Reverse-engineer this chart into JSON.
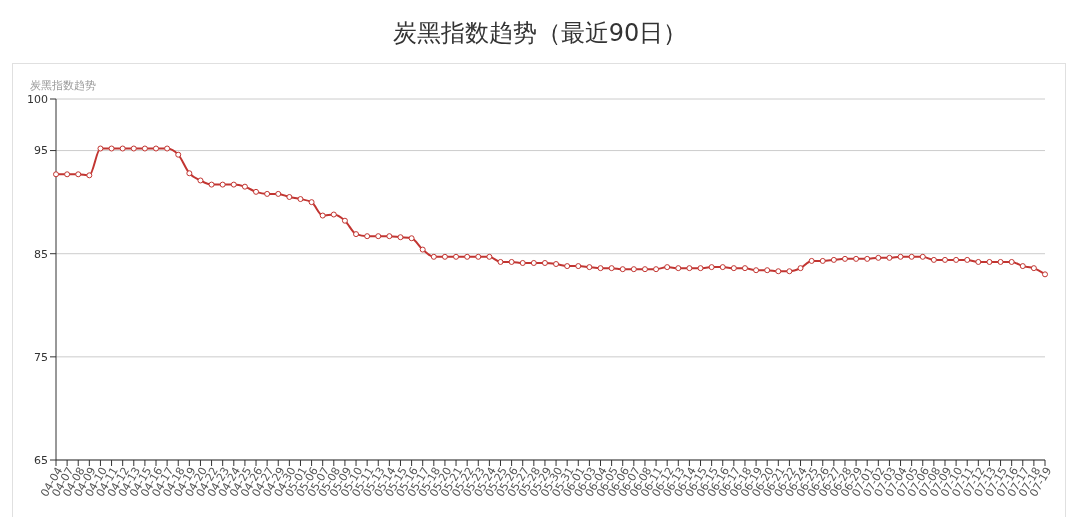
{
  "chart_data": {
    "type": "line",
    "title": "炭黑指数趋势（最近90日）",
    "ylabel": "炭黑指数趋势",
    "categories": [
      "04-04",
      "04-07",
      "04-08",
      "04-09",
      "04-10",
      "04-11",
      "04-12",
      "04-13",
      "04-15",
      "04-16",
      "04-17",
      "04-18",
      "04-19",
      "04-20",
      "04-22",
      "04-23",
      "04-24",
      "04-25",
      "04-26",
      "04-27",
      "04-29",
      "04-30",
      "05-01",
      "05-06",
      "05-07",
      "05-08",
      "05-09",
      "05-10",
      "05-11",
      "05-13",
      "05-14",
      "05-15",
      "05-16",
      "05-17",
      "05-18",
      "05-20",
      "05-21",
      "05-22",
      "05-23",
      "05-24",
      "05-25",
      "05-26",
      "05-27",
      "05-28",
      "05-29",
      "05-30",
      "05-31",
      "06-01",
      "06-03",
      "06-04",
      "06-05",
      "06-06",
      "06-07",
      "06-08",
      "06-11",
      "06-12",
      "06-13",
      "06-14",
      "06-15",
      "06-15",
      "06-16",
      "06-17",
      "06-18",
      "06-19",
      "06-20",
      "06-21",
      "06-22",
      "06-24",
      "06-25",
      "06-26",
      "06-27",
      "06-28",
      "06-29",
      "07-01",
      "07-02",
      "07-03",
      "07-04",
      "07-05",
      "07-06",
      "07-08",
      "07-09",
      "07-10",
      "07-11",
      "07-12",
      "07-13",
      "07-15",
      "07-16",
      "07-17",
      "07-18",
      "07-19"
    ],
    "series": [
      {
        "color": "#c23531",
        "values": [
          92.7,
          92.7,
          92.7,
          92.6,
          95.2,
          95.2,
          95.2,
          95.2,
          95.2,
          95.2,
          95.2,
          94.6,
          92.8,
          92.1,
          91.7,
          91.7,
          91.7,
          91.5,
          91.0,
          90.8,
          90.8,
          90.5,
          90.3,
          90.0,
          88.7,
          88.8,
          88.2,
          86.9,
          86.7,
          86.7,
          86.7,
          86.6,
          86.5,
          85.4,
          84.7,
          84.7,
          84.7,
          84.7,
          84.7,
          84.7,
          84.2,
          84.2,
          84.1,
          84.1,
          84.1,
          84.0,
          83.8,
          83.8,
          83.7,
          83.6,
          83.6,
          83.5,
          83.5,
          83.5,
          83.5,
          83.7,
          83.6,
          83.6,
          83.6,
          83.7,
          83.7,
          83.6,
          83.6,
          83.4,
          83.4,
          83.3,
          83.3,
          83.6,
          84.3,
          84.3,
          84.4,
          84.5,
          84.5,
          84.5,
          84.6,
          84.6,
          84.7,
          84.7,
          84.7,
          84.4,
          84.4,
          84.4,
          84.4,
          84.2,
          84.2,
          84.2,
          84.2,
          83.8,
          83.6,
          83.0
        ]
      }
    ],
    "ylim": [
      65,
      100
    ],
    "yticks": [
      65,
      75,
      85,
      95,
      100
    ],
    "grid": "y",
    "marker": "circle",
    "line_style": "solid"
  }
}
